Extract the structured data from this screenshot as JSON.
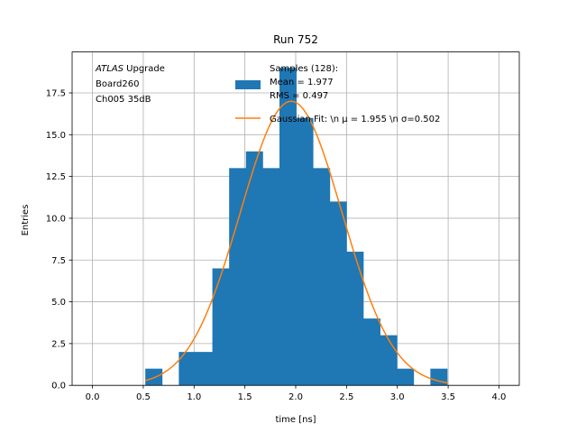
{
  "chart_data": {
    "type": "bar",
    "title": "Run 752",
    "xlabel": "time [ns]",
    "ylabel": "Entries",
    "xlim": [
      -0.2,
      4.2
    ],
    "ylim": [
      0,
      19.95
    ],
    "x_ticks": [
      0.0,
      0.5,
      1.0,
      1.5,
      2.0,
      2.5,
      3.0,
      3.5,
      4.0
    ],
    "x_tick_labels": [
      "0.0",
      "0.5",
      "1.0",
      "1.5",
      "2.0",
      "2.5",
      "3.0",
      "3.5",
      "4.0"
    ],
    "y_ticks": [
      0.0,
      2.5,
      5.0,
      7.5,
      10.0,
      12.5,
      15.0,
      17.5
    ],
    "y_tick_labels": [
      "0.0",
      "2.5",
      "5.0",
      "7.5",
      "10.0",
      "12.5",
      "15.0",
      "17.5"
    ],
    "grid": true,
    "histogram": {
      "bin_edges": [
        0.52,
        0.685,
        0.85,
        1.015,
        1.18,
        1.345,
        1.51,
        1.675,
        1.84,
        2.005,
        2.17,
        2.335,
        2.5,
        2.665,
        2.83,
        2.995,
        3.16,
        3.325,
        3.49
      ],
      "counts": [
        1,
        0,
        2,
        2,
        7,
        13,
        14,
        13,
        19,
        16,
        13,
        11,
        8,
        4,
        3,
        1,
        0,
        1
      ],
      "color": "#1f77b4"
    },
    "fit": {
      "mu": 1.955,
      "sigma": 0.502,
      "amplitude": 17.0,
      "x_range": [
        0.52,
        3.5
      ],
      "color": "#ff7f0e"
    },
    "legend": {
      "placement": "upper-center",
      "entries": [
        {
          "lines": [
            "Samples (128):",
            " Mean = 1.977",
            " RMS = 0.497"
          ],
          "kind": "patch",
          "color": "#1f77b4"
        },
        {
          "lines": [
            "Gaussian Fit: \\n μ = 1.955 \\n σ=0.502"
          ],
          "kind": "line",
          "color": "#ff7f0e"
        }
      ]
    },
    "annotation": {
      "italic": "ATLAS",
      "first_line_rest": " Upgrade",
      "lines": [
        " Board260",
        " Ch005 35dB"
      ]
    }
  }
}
